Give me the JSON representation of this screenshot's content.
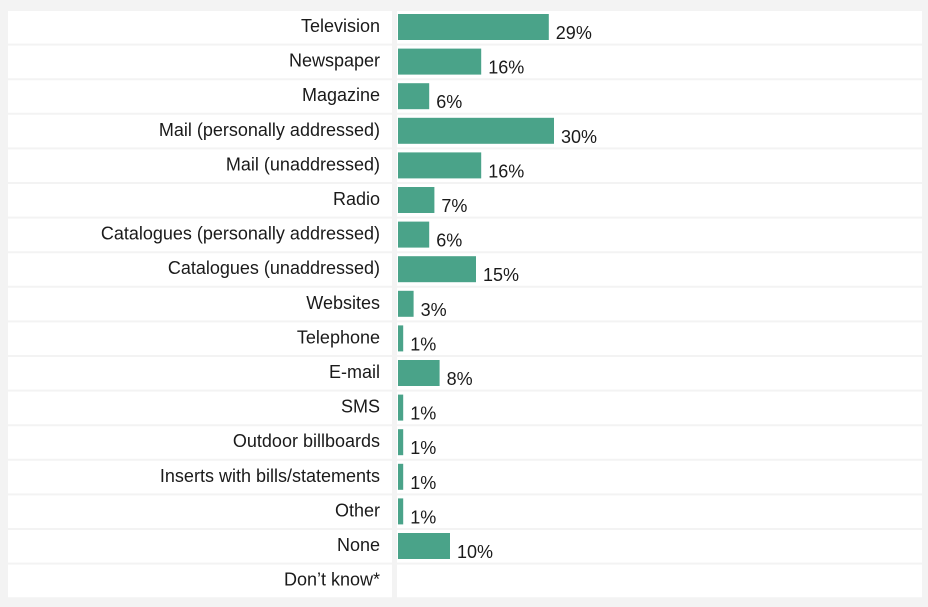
{
  "chart_data": {
    "type": "bar",
    "orientation": "horizontal",
    "categories": [
      "Television",
      "Newspaper",
      "Magazine",
      "Mail (personally addressed)",
      "Mail (unaddressed)",
      "Radio",
      "Catalogues (personally addressed)",
      "Catalogues (unaddressed)",
      "Websites",
      "Telephone",
      "E-mail",
      "SMS",
      "Outdoor billboards",
      "Inserts with bills/statements",
      "Other",
      "None",
      "Don’t know*"
    ],
    "values": [
      29,
      16,
      6,
      30,
      16,
      7,
      6,
      15,
      3,
      1,
      8,
      1,
      1,
      1,
      1,
      10,
      null
    ],
    "value_labels": [
      "29%",
      "16%",
      "6%",
      "30%",
      "16%",
      "7%",
      "6%",
      "15%",
      "3%",
      "1%",
      "8%",
      "1%",
      "1%",
      "1%",
      "1%",
      "10%",
      ""
    ],
    "unit": "%",
    "xlim": [
      0,
      100
    ],
    "grid": false,
    "legend": "none",
    "colors": {
      "bar": "#4aa389",
      "background": "#f3f3f3",
      "row_background": "#ffffff",
      "text": "#1a1a1a"
    }
  }
}
